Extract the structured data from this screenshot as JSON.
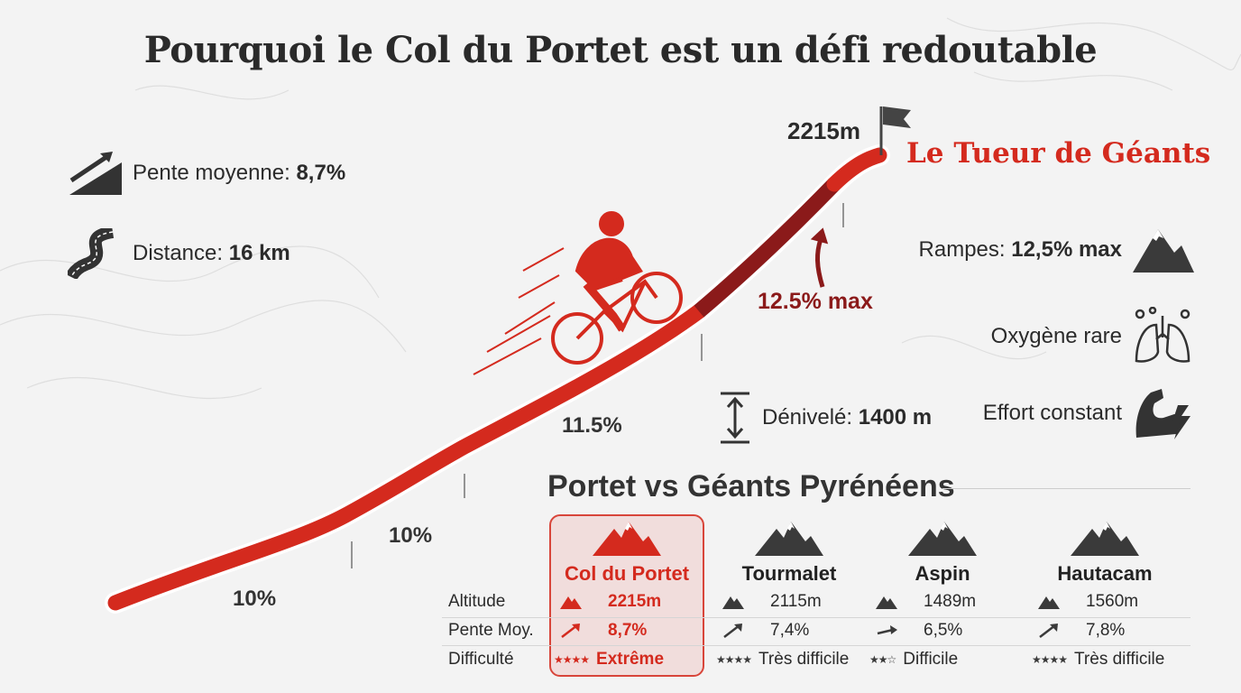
{
  "title": "Pourquoi le Col du Portet est un défi redoutable",
  "left_stats": [
    {
      "label": "Pente moyenne: ",
      "value": "8,7%",
      "icon": "slope-icon"
    },
    {
      "label": "Distance: ",
      "value": "16 km",
      "icon": "winding-road-icon"
    }
  ],
  "profile": {
    "summit": "2215m",
    "nickname": "Le Tueur de Géants",
    "segments": [
      "10%",
      "10%",
      "11.5%"
    ],
    "max_label": "12.5% max",
    "colors": {
      "main": "#d42a1e",
      "steep": "#8b1a1a"
    }
  },
  "right_stats": [
    {
      "label": "Rampes: ",
      "value": "12,5% max",
      "icon": "mountain-icon"
    },
    {
      "label": "Oxygène rare",
      "value": "",
      "icon": "lungs-icon"
    },
    {
      "label": "Effort constant",
      "value": "",
      "icon": "flexed-arm-icon"
    }
  ],
  "elevation": {
    "label": "Dénivelé: ",
    "value": "1400 m"
  },
  "comparison": {
    "title": "Portet vs Géants Pyrénéens",
    "row_labels": [
      "Altitude",
      "Pente Moy.",
      "Difficulté"
    ],
    "columns": [
      {
        "name": "Col du Portet",
        "altitude": "2215m",
        "slope": "8,7%",
        "stars": "★★★★",
        "difficulty": "Extrême",
        "highlight": true
      },
      {
        "name": "Tourmalet",
        "altitude": "2115m",
        "slope": "7,4%",
        "stars": "★★★★",
        "difficulty": "Très difficile"
      },
      {
        "name": "Aspin",
        "altitude": "1489m",
        "slope": "6,5%",
        "stars": "★★☆",
        "difficulty": "Difficile"
      },
      {
        "name": "Hautacam",
        "altitude": "1560m",
        "slope": "7,8%",
        "stars": "★★★★",
        "difficulty": "Très difficile"
      }
    ]
  }
}
